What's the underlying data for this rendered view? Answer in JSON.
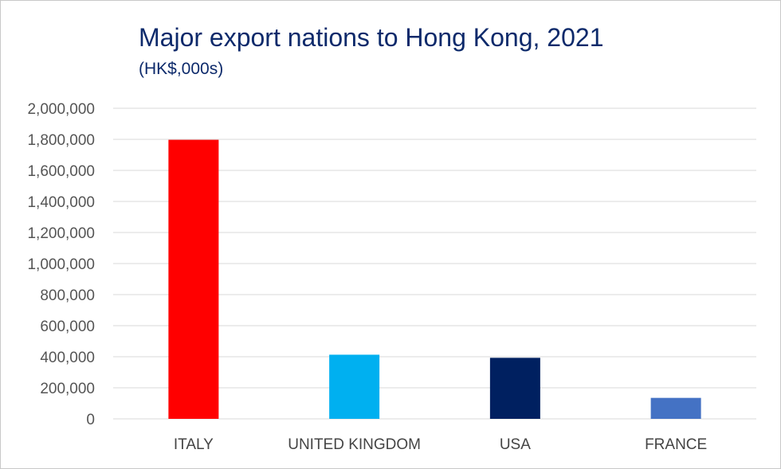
{
  "chart_data": {
    "type": "bar",
    "title": "Major export nations to Hong Kong, 2021",
    "subtitle": "(HK$,000s)",
    "categories": [
      "ITALY",
      "UNITED KINGDOM",
      "USA",
      "FRANCE"
    ],
    "values": [
      1797000,
      413000,
      393000,
      135000
    ],
    "bar_colors": [
      "#ff0000",
      "#00b0f0",
      "#002060",
      "#4472c4"
    ],
    "gridline_color": "#d9d9d9",
    "ylim": [
      0,
      2000000
    ],
    "yticks": [
      0,
      200000,
      400000,
      600000,
      800000,
      1000000,
      1200000,
      1400000,
      1600000,
      1800000,
      2000000
    ],
    "ytick_labels": [
      "0",
      "200,000",
      "400,000",
      "600,000",
      "800,000",
      "1,000,000",
      "1,200,000",
      "1,400,000",
      "1,600,000",
      "1,800,000",
      "2,000,000"
    ],
    "xlabel": "",
    "ylabel": "",
    "grid": true,
    "legend": "none"
  }
}
